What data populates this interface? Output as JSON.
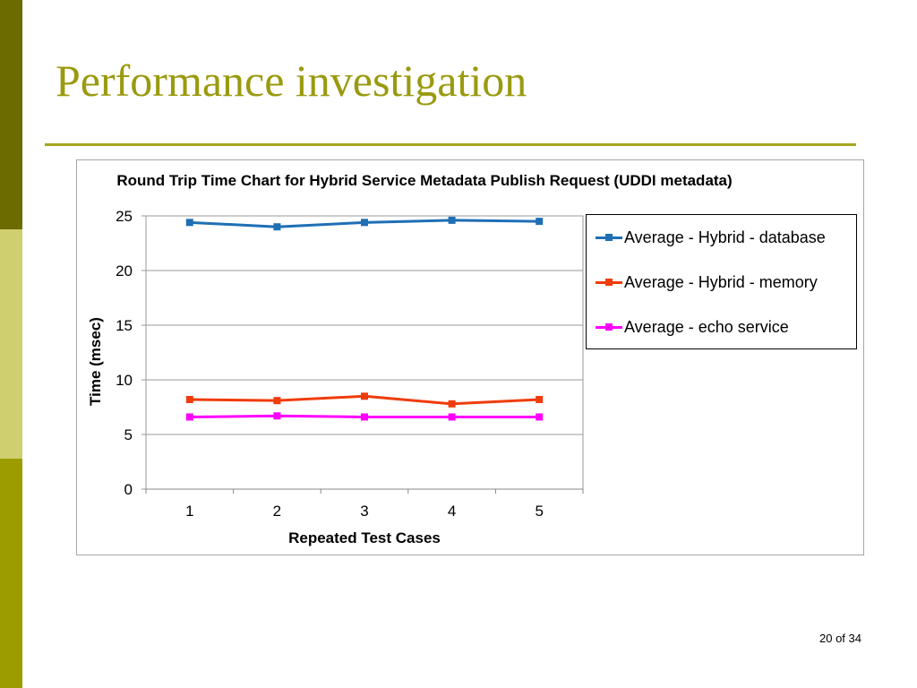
{
  "slide": {
    "title": "Performance investigation",
    "page_number": "20 of 34",
    "title_color": "#9a9a10",
    "rule_color": "#a5a51e",
    "sidebar_colors": [
      "#6b6b00",
      "#cfcf6f",
      "#9c9c00"
    ]
  },
  "chart_data": {
    "type": "line",
    "title": "Round Trip Time Chart for Hybrid Service Metadata Publish Request (UDDI metadata)",
    "xlabel": "Repeated Test Cases",
    "ylabel": "Time (msec)",
    "categories": [
      "1",
      "2",
      "3",
      "4",
      "5"
    ],
    "ylim": [
      0,
      25
    ],
    "yticks": [
      0,
      5,
      10,
      15,
      20,
      25
    ],
    "grid": true,
    "legend_position": "right",
    "series": [
      {
        "name": "Average - Hybrid - database",
        "color": "#1f6fb5",
        "values": [
          24.4,
          24.0,
          24.4,
          24.6,
          24.5
        ]
      },
      {
        "name": "Average - Hybrid - memory",
        "color": "#f03c0a",
        "values": [
          8.2,
          8.1,
          8.5,
          7.8,
          8.2
        ]
      },
      {
        "name": "Average - echo service",
        "color": "#ff00ff",
        "values": [
          6.6,
          6.7,
          6.6,
          6.6,
          6.6
        ]
      }
    ]
  }
}
